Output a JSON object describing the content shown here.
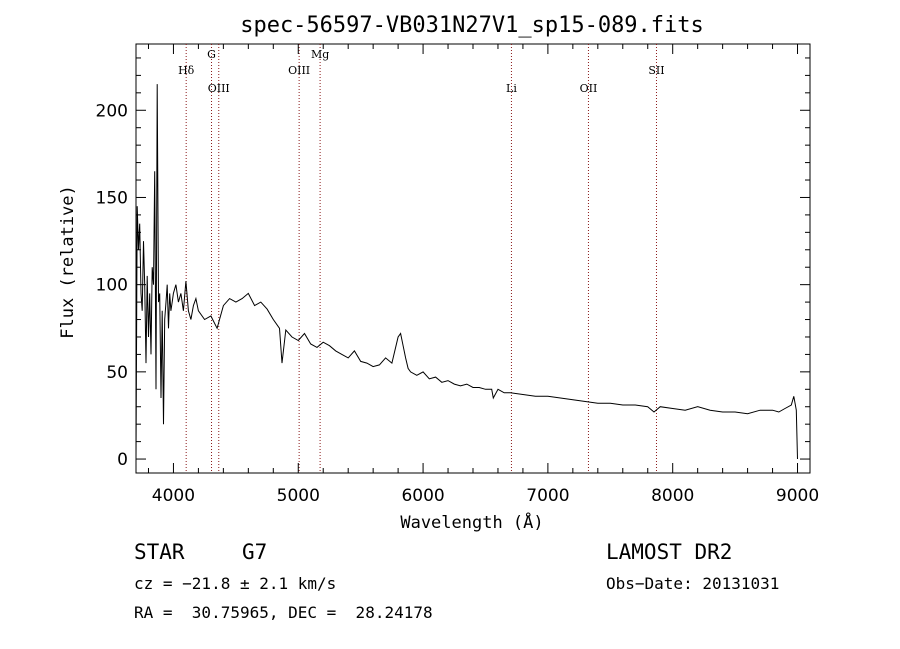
{
  "chart_data": {
    "type": "line",
    "title": "spec-56597-VB031N27V1_sp15-089.fits",
    "xlabel": "Wavelength (Å)",
    "ylabel": "Flux (relative)",
    "xlim": [
      3700,
      9100
    ],
    "ylim": [
      -8,
      238
    ],
    "xticks": [
      4000,
      5000,
      6000,
      7000,
      8000,
      9000
    ],
    "yticks": [
      0,
      50,
      100,
      150,
      200
    ],
    "grid": false,
    "line_color": "#000000",
    "marker_color": "#8b1a1a",
    "spectral_lines": [
      {
        "label": "Hδ",
        "x": 4102
      },
      {
        "label": "G",
        "x": 4305
      },
      {
        "label": "OIII",
        "x": 4363
      },
      {
        "label": "OIII",
        "x": 5007
      },
      {
        "label": "Mg",
        "x": 5175
      },
      {
        "label": "Li",
        "x": 6708
      },
      {
        "label": "OII",
        "x": 7325
      },
      {
        "label": "SII",
        "x": 7870
      }
    ],
    "series": [
      {
        "x": [
          3700,
          3710,
          3720,
          3730,
          3740,
          3750,
          3760,
          3770,
          3780,
          3790,
          3800,
          3810,
          3820,
          3830,
          3840,
          3850,
          3860,
          3870,
          3880,
          3890,
          3900,
          3910,
          3920,
          3930,
          3940,
          3950,
          3960,
          3970,
          3980,
          3990,
          4000,
          4020,
          4040,
          4060,
          4080,
          4100,
          4120,
          4140,
          4160,
          4180,
          4200,
          4250,
          4300,
          4350,
          4400,
          4450,
          4500,
          4550,
          4600,
          4650,
          4700,
          4750,
          4800,
          4850,
          4870,
          4900,
          4950,
          5000,
          5050,
          5100,
          5150,
          5200,
          5250,
          5300,
          5350,
          5400,
          5450,
          5500,
          5550,
          5600,
          5650,
          5700,
          5750,
          5800,
          5820,
          5840,
          5860,
          5880,
          5900,
          5950,
          6000,
          6050,
          6100,
          6150,
          6200,
          6250,
          6300,
          6350,
          6400,
          6450,
          6500,
          6550,
          6563,
          6600,
          6650,
          6700,
          6800,
          6900,
          7000,
          7100,
          7200,
          7300,
          7400,
          7500,
          7600,
          7700,
          7800,
          7850,
          7900,
          8000,
          8100,
          8200,
          8300,
          8400,
          8500,
          8600,
          8700,
          8800,
          8850,
          8900,
          8950,
          8970,
          8990,
          9000
        ],
        "y": [
          0,
          145,
          120,
          135,
          95,
          85,
          125,
          100,
          55,
          105,
          70,
          95,
          60,
          110,
          100,
          165,
          40,
          215,
          90,
          95,
          35,
          85,
          20,
          80,
          90,
          100,
          75,
          95,
          85,
          90,
          95,
          100,
          90,
          95,
          85,
          102,
          85,
          80,
          88,
          92,
          85,
          80,
          82,
          75,
          88,
          92,
          90,
          92,
          95,
          88,
          90,
          86,
          80,
          75,
          55,
          74,
          70,
          68,
          72,
          66,
          64,
          67,
          65,
          62,
          60,
          58,
          62,
          56,
          55,
          53,
          54,
          58,
          55,
          70,
          72,
          65,
          58,
          52,
          50,
          48,
          50,
          46,
          47,
          44,
          45,
          43,
          42,
          43,
          41,
          41,
          40,
          40,
          35,
          40,
          38,
          38,
          37,
          36,
          36,
          35,
          34,
          33,
          32,
          32,
          31,
          31,
          30,
          27,
          30,
          29,
          28,
          30,
          28,
          27,
          27,
          26,
          28,
          28,
          27,
          29,
          31,
          36,
          28,
          0
        ]
      }
    ]
  },
  "info": {
    "object_class": "STAR",
    "subclass": "G7",
    "survey": "LAMOST DR2",
    "redshift": "cz = −21.8 ± 2.1 km/s",
    "obs_date": "Obs−Date: 20131031",
    "coordinates": "RA =  30.75965, DEC =  28.24178"
  }
}
